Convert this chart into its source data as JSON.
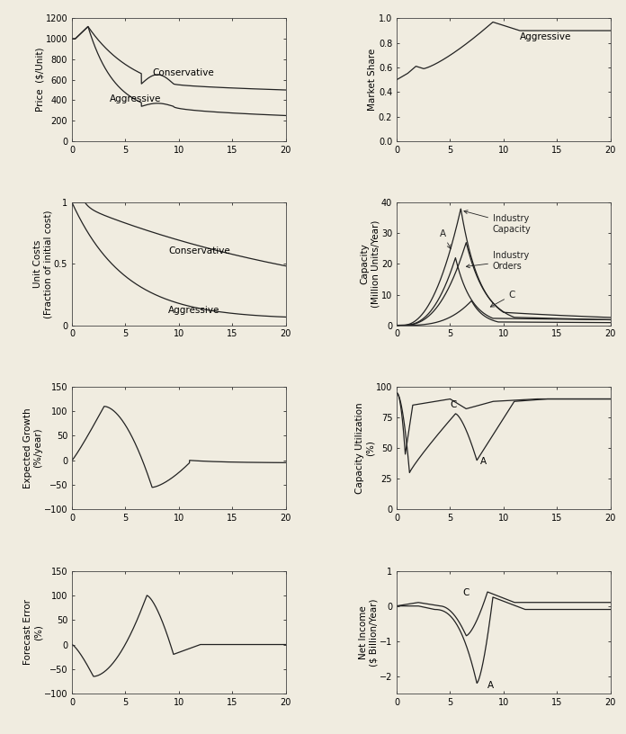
{
  "background_color": "#f0ece0",
  "line_color": "#222222",
  "font_size_label": 7.5,
  "font_size_tick": 7,
  "font_size_annotation": 7.5,
  "subplots": {
    "price": {
      "ylabel": "Price  ($/Unit)",
      "ylim": [
        0,
        1200
      ],
      "yticks": [
        0,
        200,
        400,
        600,
        800,
        1000,
        1200
      ],
      "xlim": [
        0,
        20
      ],
      "xticks": [
        0,
        5,
        10,
        15,
        20
      ]
    },
    "market_share": {
      "ylabel": "Market Share",
      "ylim": [
        0,
        1
      ],
      "yticks": [
        0,
        0.2,
        0.4,
        0.6,
        0.8,
        1.0
      ],
      "xlim": [
        0,
        20
      ],
      "xticks": [
        0,
        5,
        10,
        15,
        20
      ]
    },
    "unit_costs": {
      "ylabel": "Unit Costs\n(Fraction of initial cost)",
      "ylim": [
        0,
        1
      ],
      "yticks": [
        0,
        0.5,
        1.0
      ],
      "xlim": [
        0,
        20
      ],
      "xticks": [
        0,
        5,
        10,
        15,
        20
      ]
    },
    "capacity": {
      "ylabel": "Capacity\n(Million Units/Year)",
      "ylim": [
        0,
        40
      ],
      "yticks": [
        0,
        10,
        20,
        30,
        40
      ],
      "xlim": [
        0,
        20
      ],
      "xticks": [
        0,
        5,
        10,
        15,
        20
      ]
    },
    "expected_growth": {
      "ylabel": "Expected Growth\n(%/year)",
      "ylim": [
        -100,
        150
      ],
      "yticks": [
        -100,
        -50,
        0,
        50,
        100,
        150
      ],
      "xlim": [
        0,
        20
      ],
      "xticks": [
        0,
        5,
        10,
        15,
        20
      ]
    },
    "capacity_utilization": {
      "ylabel": "Capacity Utilization\n(%)",
      "ylim": [
        0,
        100
      ],
      "yticks": [
        0,
        50,
        100
      ],
      "xlim": [
        0,
        20
      ],
      "xticks": [
        0,
        5,
        10,
        15,
        20
      ]
    },
    "forecast_error": {
      "ylabel": "Forecast Error\n(%)",
      "ylim": [
        -100,
        150
      ],
      "yticks": [
        -100,
        -50,
        0,
        50,
        100,
        150
      ],
      "xlim": [
        0,
        20
      ],
      "xticks": [
        0,
        5,
        10,
        15,
        20
      ]
    },
    "net_income": {
      "ylabel": "Net Income\n($ Billion/Year)",
      "ylim": [
        -2.5,
        1
      ],
      "yticks": [
        -2,
        -1,
        0,
        1
      ],
      "xlim": [
        0,
        20
      ],
      "xticks": [
        0,
        5,
        10,
        15,
        20
      ]
    }
  }
}
